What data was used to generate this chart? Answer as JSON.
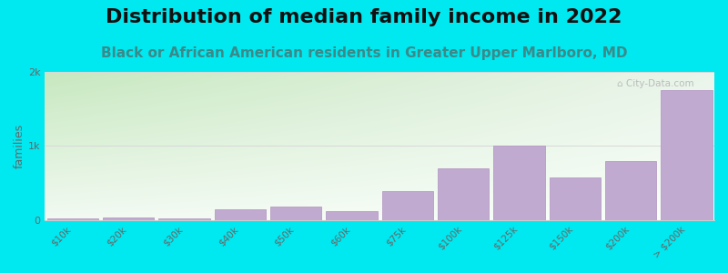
{
  "title": "Distribution of median family income in 2022",
  "subtitle": "Black or African American residents in Greater Upper Marlboro, MD",
  "ylabel": "families",
  "categories": [
    "$10k",
    "$20k",
    "$30k",
    "$40k",
    "$50k",
    "$60k",
    "$75k",
    "$100k",
    "$125k",
    "$150k",
    "$200k",
    "> $200k"
  ],
  "values": [
    15,
    30,
    20,
    140,
    175,
    120,
    390,
    700,
    1000,
    580,
    800,
    1750
  ],
  "bar_color": "#c0aad0",
  "bar_edge_color": "#b090c0",
  "background_outer": "#00e8f0",
  "plot_bg_color_topleft": "#c8e8c0",
  "plot_bg_color_topright": "#eaf5ea",
  "plot_bg_color_bottom": "#f8fcf8",
  "yticks": [
    0,
    1000,
    2000
  ],
  "ytick_labels": [
    "0",
    "1k",
    "2k"
  ],
  "ylim": [
    0,
    2000
  ],
  "title_fontsize": 16,
  "subtitle_fontsize": 11,
  "ylabel_fontsize": 9,
  "watermark": "⌂ City-Data.com",
  "grid_color": "#d8d8d8",
  "subtitle_color": "#3a8a8a",
  "title_color": "#111111",
  "tick_color": "#666666"
}
